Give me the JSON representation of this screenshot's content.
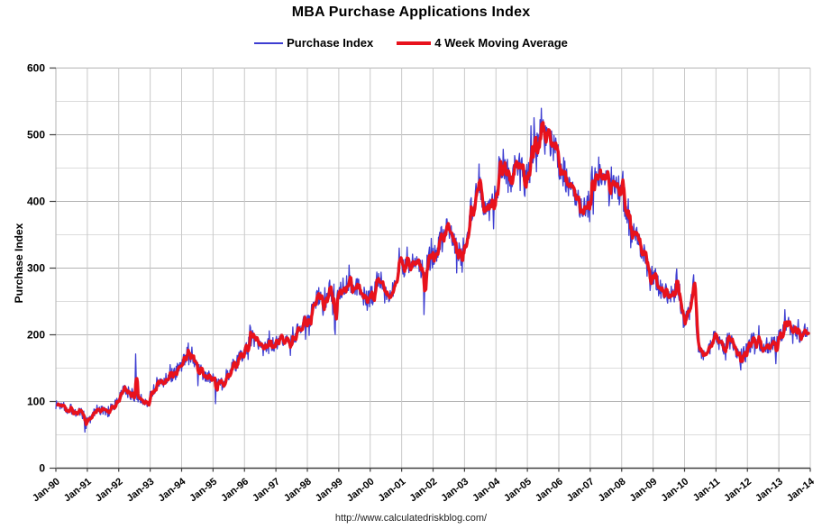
{
  "page": {
    "title": "MBA Purchase Applications Index",
    "footer_url": "http://www.calculatedriskblog.com/"
  },
  "legend": [
    {
      "label": "Purchase Index",
      "color": "#3d3dd1"
    },
    {
      "label": "4 Week Moving Average",
      "color": "#e8121c"
    }
  ],
  "colors": {
    "purchase_index_line": "#3d3dd1",
    "moving_average_line": "#e8121c",
    "grid_minor": "#dcdcdc",
    "grid_major": "#b3b3b3",
    "grid_vertical": "#c9c9c9",
    "axis_line": "#404040",
    "background": "#ffffff"
  },
  "chart_data": {
    "type": "line",
    "title": "MBA Purchase Applications Index",
    "xlabel": "",
    "ylabel": "Purchase Index",
    "ylim": [
      0,
      600
    ],
    "xlim_years": [
      1990,
      2014
    ],
    "grid": {
      "y_step_minor": 50,
      "y_step_major": 100,
      "x_step_years": 1,
      "grid_on": true
    },
    "legend_position": "top-center",
    "x_tick_labels": [
      "Jan-90",
      "Jan-91",
      "Jan-92",
      "Jan-93",
      "Jan-94",
      "Jan-95",
      "Jan-96",
      "Jan-97",
      "Jan-98",
      "Jan-99",
      "Jan-00",
      "Jan-01",
      "Jan-02",
      "Jan-03",
      "Jan-04",
      "Jan-05",
      "Jan-06",
      "Jan-07",
      "Jan-08",
      "Jan-09",
      "Jan-10",
      "Jan-11",
      "Jan-12",
      "Jan-13",
      "Jan-14"
    ],
    "y_tick_labels": [
      "0",
      "100",
      "200",
      "300",
      "400",
      "500",
      "600"
    ],
    "series": [
      {
        "name": "Purchase Index",
        "color": "#3d3dd1",
        "width": 1.3,
        "derivation": "weekly values = interpolated monthly_index_values + pseudo-random weekly noise + event_spikes"
      },
      {
        "name": "4 Week Moving Average",
        "color": "#e8121c",
        "width": 3.4,
        "derivation": "4-week trailing moving average of the weekly Purchase Index series"
      }
    ],
    "monthly_index_values": {
      "start": "1990-01",
      "end": "2013-11",
      "values": [
        95,
        94,
        96,
        93,
        91,
        89,
        87,
        86,
        84,
        82,
        79,
        76,
        73,
        75,
        82,
        87,
        89,
        87,
        85,
        84,
        86,
        89,
        93,
        99,
        108,
        113,
        117,
        115,
        111,
        109,
        111,
        108,
        104,
        100,
        99,
        104,
        112,
        119,
        126,
        130,
        128,
        131,
        134,
        137,
        140,
        143,
        147,
        153,
        160,
        166,
        169,
        166,
        159,
        151,
        146,
        143,
        141,
        139,
        137,
        134,
        131,
        125,
        123,
        127,
        134,
        141,
        147,
        152,
        156,
        160,
        165,
        171,
        181,
        189,
        196,
        193,
        187,
        183,
        181,
        182,
        184,
        185,
        184,
        183,
        185,
        187,
        189,
        191,
        193,
        196,
        199,
        202,
        205,
        209,
        214,
        219,
        226,
        238,
        248,
        253,
        256,
        247,
        242,
        256,
        266,
        254,
        241,
        253,
        263,
        271,
        278,
        283,
        281,
        278,
        274,
        270,
        265,
        259,
        253,
        252,
        258,
        266,
        277,
        284,
        276,
        264,
        262,
        266,
        272,
        279,
        287,
        295,
        302,
        307,
        309,
        305,
        302,
        304,
        306,
        303,
        291,
        288,
        300,
        307,
        316,
        326,
        341,
        356,
        368,
        363,
        350,
        342,
        336,
        326,
        320,
        332,
        347,
        364,
        387,
        406,
        420,
        426,
        411,
        393,
        386,
        393,
        401,
        417,
        432,
        444,
        452,
        456,
        446,
        438,
        442,
        448,
        452,
        458,
        452,
        436,
        444,
        466,
        482,
        488,
        492,
        495,
        497,
        494,
        486,
        478,
        472,
        466,
        452,
        444,
        436,
        428,
        420,
        412,
        402,
        395,
        391,
        393,
        399,
        408,
        424,
        438,
        446,
        442,
        447,
        440,
        432,
        424,
        420,
        425,
        417,
        408,
        400,
        380,
        368,
        362,
        352,
        344,
        338,
        328,
        318,
        306,
        295,
        292,
        294,
        281,
        268,
        262,
        263,
        264,
        260,
        258,
        265,
        276,
        242,
        222,
        226,
        230,
        246,
        275,
        218,
        176,
        168,
        172,
        176,
        181,
        188,
        195,
        196,
        187,
        182,
        186,
        190,
        190,
        185,
        174,
        165,
        166,
        171,
        176,
        182,
        188,
        192,
        189,
        184,
        179,
        178,
        183,
        186,
        183,
        187,
        194,
        197,
        203,
        209,
        215,
        218,
        213,
        207,
        203,
        200,
        205,
        211
      ]
    },
    "event_spikes": [
      [
        1990.92,
        -20
      ],
      [
        1992.54,
        68
      ],
      [
        1994.17,
        28
      ],
      [
        1995.08,
        -34
      ],
      [
        1996.17,
        20
      ],
      [
        1997.95,
        -20
      ],
      [
        1998.1,
        -26
      ],
      [
        1998.88,
        -40
      ],
      [
        1999.33,
        36
      ],
      [
        2000.92,
        30
      ],
      [
        2001.17,
        38
      ],
      [
        2001.71,
        -72
      ],
      [
        2001.87,
        34
      ],
      [
        2002.92,
        -30
      ],
      [
        2003.45,
        26
      ],
      [
        2004.12,
        40
      ],
      [
        2004.92,
        -32
      ],
      [
        2005.12,
        32
      ],
      [
        2005.45,
        33
      ],
      [
        2006.92,
        -28
      ],
      [
        2007.05,
        26
      ],
      [
        2008.03,
        62
      ],
      [
        2008.92,
        -36
      ],
      [
        2009.75,
        28
      ],
      [
        2010.28,
        16
      ],
      [
        2011.92,
        -22
      ],
      [
        2012.9,
        -28
      ],
      [
        2013.25,
        14
      ]
    ],
    "noise": {
      "seed": 1337,
      "base_amp": 5,
      "rel_amp": 0.045,
      "outlier_prob": 0.055,
      "outlier_mult": 2.2
    }
  }
}
